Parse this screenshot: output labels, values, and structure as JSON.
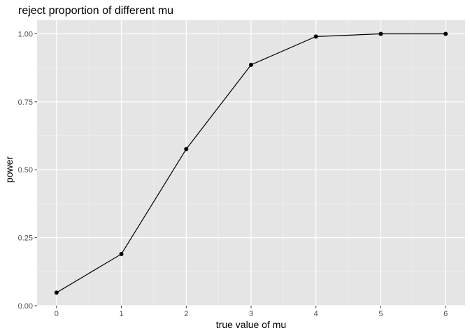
{
  "chart_data": {
    "type": "line",
    "title": "reject proportion of different mu",
    "xlabel": "true value of mu",
    "ylabel": "power",
    "x": [
      0,
      1,
      2,
      3,
      4,
      5,
      6
    ],
    "series": [
      {
        "values": [
          0.048,
          0.19,
          0.576,
          0.886,
          0.99,
          1.0,
          1.0
        ],
        "markers": true
      }
    ],
    "xlim": [
      -0.3,
      6.3
    ],
    "ylim": [
      0,
      1.05
    ],
    "x_ticks": [
      0,
      1,
      2,
      3,
      4,
      5,
      6
    ],
    "x_tick_labels": [
      "0",
      "1",
      "2",
      "3",
      "4",
      "5",
      "6"
    ],
    "y_ticks": [
      0,
      0.25,
      0.5,
      0.75,
      1.0
    ],
    "y_tick_labels": [
      "0.00",
      "0.25",
      "0.50",
      "0.75",
      "1.00"
    ],
    "grid": true,
    "legend": "none",
    "colors": {
      "panel_background": "#e5e5e5",
      "grid_major": "#ffffff",
      "grid_minor": "#f2f2f2",
      "line": "#000000",
      "point": "#000000",
      "tick_text": "#4d4d4d",
      "tick_mark": "#333333"
    }
  }
}
